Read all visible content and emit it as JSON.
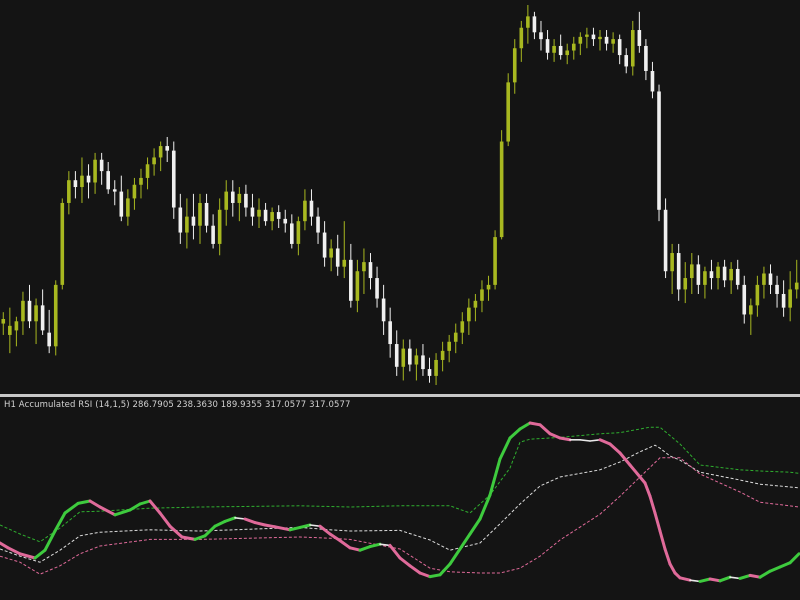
{
  "indicator_label": "H1 Accumulated RSI (14,1,5) 286.7905 238.3630 189.9355 317.0577 317.0577",
  "colors": {
    "background": "#141414",
    "separator": "#c8c8c8",
    "bull_candle": "#a8b820",
    "bear_candle": "#f0f0f0",
    "wick": "#d8d8d8",
    "rsi_up": "#3ecb3e",
    "rsi_flat": "#e8e8e8",
    "rsi_down": "#e06a9a",
    "band_upper": "#2fae2f",
    "band_mid": "#dcdcdc",
    "band_lower": "#e06a9a",
    "label_text": "#d2d2d2"
  },
  "chart_data": [
    {
      "type": "candlestick",
      "title": "",
      "candles": [
        {
          "o": 305,
          "h": 310,
          "l": 300,
          "c": 307
        },
        {
          "o": 300,
          "h": 312,
          "l": 292,
          "c": 304
        },
        {
          "o": 302,
          "h": 308,
          "l": 295,
          "c": 306
        },
        {
          "o": 306,
          "h": 319,
          "l": 300,
          "c": 315
        },
        {
          "o": 315,
          "h": 322,
          "l": 303,
          "c": 306
        },
        {
          "o": 306,
          "h": 316,
          "l": 296,
          "c": 313
        },
        {
          "o": 313,
          "h": 320,
          "l": 300,
          "c": 302
        },
        {
          "o": 301,
          "h": 311,
          "l": 292,
          "c": 295
        },
        {
          "o": 295,
          "h": 324,
          "l": 291,
          "c": 322
        },
        {
          "o": 322,
          "h": 360,
          "l": 320,
          "c": 358
        },
        {
          "o": 358,
          "h": 372,
          "l": 353,
          "c": 368
        },
        {
          "o": 368,
          "h": 372,
          "l": 360,
          "c": 365
        },
        {
          "o": 365,
          "h": 378,
          "l": 358,
          "c": 370
        },
        {
          "o": 370,
          "h": 375,
          "l": 360,
          "c": 367
        },
        {
          "o": 367,
          "h": 380,
          "l": 362,
          "c": 377
        },
        {
          "o": 377,
          "h": 380,
          "l": 366,
          "c": 372
        },
        {
          "o": 372,
          "h": 376,
          "l": 362,
          "c": 364
        },
        {
          "o": 364,
          "h": 368,
          "l": 357,
          "c": 363
        },
        {
          "o": 363,
          "h": 370,
          "l": 350,
          "c": 352
        },
        {
          "o": 352,
          "h": 364,
          "l": 348,
          "c": 360
        },
        {
          "o": 360,
          "h": 369,
          "l": 355,
          "c": 366
        },
        {
          "o": 366,
          "h": 373,
          "l": 360,
          "c": 369
        },
        {
          "o": 369,
          "h": 378,
          "l": 364,
          "c": 375
        },
        {
          "o": 375,
          "h": 382,
          "l": 370,
          "c": 378
        },
        {
          "o": 378,
          "h": 385,
          "l": 372,
          "c": 383
        },
        {
          "o": 383,
          "h": 387,
          "l": 376,
          "c": 381
        },
        {
          "o": 381,
          "h": 385,
          "l": 351,
          "c": 356
        },
        {
          "o": 356,
          "h": 362,
          "l": 340,
          "c": 345
        },
        {
          "o": 345,
          "h": 360,
          "l": 338,
          "c": 352
        },
        {
          "o": 352,
          "h": 362,
          "l": 342,
          "c": 348
        },
        {
          "o": 348,
          "h": 362,
          "l": 340,
          "c": 358
        },
        {
          "o": 358,
          "h": 362,
          "l": 345,
          "c": 348
        },
        {
          "o": 348,
          "h": 353,
          "l": 338,
          "c": 340
        },
        {
          "o": 340,
          "h": 360,
          "l": 335,
          "c": 355
        },
        {
          "o": 355,
          "h": 368,
          "l": 348,
          "c": 363
        },
        {
          "o": 363,
          "h": 368,
          "l": 352,
          "c": 358
        },
        {
          "o": 358,
          "h": 365,
          "l": 350,
          "c": 362
        },
        {
          "o": 362,
          "h": 366,
          "l": 352,
          "c": 356
        },
        {
          "o": 356,
          "h": 362,
          "l": 348,
          "c": 352
        },
        {
          "o": 352,
          "h": 360,
          "l": 347,
          "c": 355
        },
        {
          "o": 355,
          "h": 358,
          "l": 348,
          "c": 350
        },
        {
          "o": 350,
          "h": 356,
          "l": 346,
          "c": 354
        },
        {
          "o": 354,
          "h": 357,
          "l": 347,
          "c": 351
        },
        {
          "o": 351,
          "h": 355,
          "l": 345,
          "c": 349
        },
        {
          "o": 349,
          "h": 353,
          "l": 338,
          "c": 340
        },
        {
          "o": 340,
          "h": 352,
          "l": 335,
          "c": 350
        },
        {
          "o": 350,
          "h": 364,
          "l": 346,
          "c": 359
        },
        {
          "o": 359,
          "h": 364,
          "l": 348,
          "c": 352
        },
        {
          "o": 352,
          "h": 356,
          "l": 340,
          "c": 345
        },
        {
          "o": 345,
          "h": 350,
          "l": 330,
          "c": 334
        },
        {
          "o": 334,
          "h": 342,
          "l": 328,
          "c": 338
        },
        {
          "o": 338,
          "h": 344,
          "l": 326,
          "c": 330
        },
        {
          "o": 330,
          "h": 350,
          "l": 325,
          "c": 333
        },
        {
          "o": 333,
          "h": 340,
          "l": 312,
          "c": 315
        },
        {
          "o": 315,
          "h": 333,
          "l": 310,
          "c": 328
        },
        {
          "o": 328,
          "h": 338,
          "l": 318,
          "c": 332
        },
        {
          "o": 332,
          "h": 336,
          "l": 320,
          "c": 325
        },
        {
          "o": 325,
          "h": 330,
          "l": 312,
          "c": 316
        },
        {
          "o": 316,
          "h": 322,
          "l": 300,
          "c": 306
        },
        {
          "o": 306,
          "h": 312,
          "l": 290,
          "c": 296
        },
        {
          "o": 296,
          "h": 302,
          "l": 282,
          "c": 286
        },
        {
          "o": 286,
          "h": 298,
          "l": 280,
          "c": 294
        },
        {
          "o": 294,
          "h": 298,
          "l": 284,
          "c": 287
        },
        {
          "o": 287,
          "h": 294,
          "l": 280,
          "c": 291
        },
        {
          "o": 291,
          "h": 296,
          "l": 282,
          "c": 285
        },
        {
          "o": 285,
          "h": 290,
          "l": 279,
          "c": 282
        },
        {
          "o": 282,
          "h": 292,
          "l": 278,
          "c": 289
        },
        {
          "o": 289,
          "h": 297,
          "l": 284,
          "c": 293
        },
        {
          "o": 293,
          "h": 300,
          "l": 288,
          "c": 297
        },
        {
          "o": 297,
          "h": 305,
          "l": 292,
          "c": 301
        },
        {
          "o": 301,
          "h": 310,
          "l": 296,
          "c": 306
        },
        {
          "o": 306,
          "h": 316,
          "l": 300,
          "c": 312
        },
        {
          "o": 312,
          "h": 318,
          "l": 306,
          "c": 315
        },
        {
          "o": 315,
          "h": 324,
          "l": 310,
          "c": 320
        },
        {
          "o": 320,
          "h": 326,
          "l": 315,
          "c": 322
        },
        {
          "o": 322,
          "h": 346,
          "l": 320,
          "c": 343
        },
        {
          "o": 343,
          "h": 390,
          "l": 342,
          "c": 385
        },
        {
          "o": 385,
          "h": 415,
          "l": 383,
          "c": 411
        },
        {
          "o": 411,
          "h": 430,
          "l": 406,
          "c": 426
        },
        {
          "o": 426,
          "h": 438,
          "l": 420,
          "c": 435
        },
        {
          "o": 435,
          "h": 445,
          "l": 428,
          "c": 440
        },
        {
          "o": 440,
          "h": 442,
          "l": 430,
          "c": 433
        },
        {
          "o": 433,
          "h": 438,
          "l": 425,
          "c": 430
        },
        {
          "o": 430,
          "h": 434,
          "l": 421,
          "c": 424
        },
        {
          "o": 424,
          "h": 430,
          "l": 420,
          "c": 427
        },
        {
          "o": 427,
          "h": 432,
          "l": 421,
          "c": 423
        },
        {
          "o": 423,
          "h": 428,
          "l": 419,
          "c": 425
        },
        {
          "o": 425,
          "h": 431,
          "l": 421,
          "c": 428
        },
        {
          "o": 428,
          "h": 433,
          "l": 423,
          "c": 431
        },
        {
          "o": 431,
          "h": 435,
          "l": 426,
          "c": 432
        },
        {
          "o": 432,
          "h": 435,
          "l": 427,
          "c": 430
        },
        {
          "o": 430,
          "h": 434,
          "l": 425,
          "c": 431
        },
        {
          "o": 431,
          "h": 434,
          "l": 425,
          "c": 428
        },
        {
          "o": 428,
          "h": 433,
          "l": 424,
          "c": 430
        },
        {
          "o": 430,
          "h": 432,
          "l": 419,
          "c": 423
        },
        {
          "o": 423,
          "h": 426,
          "l": 415,
          "c": 418
        },
        {
          "o": 418,
          "h": 438,
          "l": 414,
          "c": 434
        },
        {
          "o": 434,
          "h": 442,
          "l": 424,
          "c": 427
        },
        {
          "o": 427,
          "h": 430,
          "l": 412,
          "c": 416
        },
        {
          "o": 416,
          "h": 420,
          "l": 404,
          "c": 407
        },
        {
          "o": 407,
          "h": 410,
          "l": 350,
          "c": 355
        },
        {
          "o": 355,
          "h": 360,
          "l": 325,
          "c": 328
        },
        {
          "o": 328,
          "h": 340,
          "l": 318,
          "c": 336
        },
        {
          "o": 336,
          "h": 340,
          "l": 315,
          "c": 320
        },
        {
          "o": 320,
          "h": 332,
          "l": 314,
          "c": 325
        },
        {
          "o": 325,
          "h": 336,
          "l": 318,
          "c": 331
        },
        {
          "o": 331,
          "h": 335,
          "l": 318,
          "c": 322
        },
        {
          "o": 322,
          "h": 330,
          "l": 316,
          "c": 328
        },
        {
          "o": 328,
          "h": 333,
          "l": 320,
          "c": 325
        },
        {
          "o": 325,
          "h": 332,
          "l": 320,
          "c": 330
        },
        {
          "o": 330,
          "h": 333,
          "l": 321,
          "c": 324
        },
        {
          "o": 324,
          "h": 332,
          "l": 318,
          "c": 329
        },
        {
          "o": 329,
          "h": 333,
          "l": 320,
          "c": 322
        },
        {
          "o": 322,
          "h": 326,
          "l": 305,
          "c": 309
        },
        {
          "o": 309,
          "h": 316,
          "l": 300,
          "c": 313
        },
        {
          "o": 313,
          "h": 326,
          "l": 308,
          "c": 322
        },
        {
          "o": 322,
          "h": 330,
          "l": 316,
          "c": 327
        },
        {
          "o": 327,
          "h": 331,
          "l": 318,
          "c": 322
        },
        {
          "o": 322,
          "h": 326,
          "l": 312,
          "c": 318
        },
        {
          "o": 318,
          "h": 324,
          "l": 308,
          "c": 312
        },
        {
          "o": 312,
          "h": 328,
          "l": 306,
          "c": 320
        },
        {
          "o": 320,
          "h": 333,
          "l": 316,
          "c": 323
        }
      ]
    },
    {
      "type": "line",
      "title": "H1 Accumulated RSI (14,1,5)",
      "ylim": [
        0,
        320
      ],
      "series": [
        {
          "role": "rsi",
          "x": [
            0,
            8,
            20,
            35,
            45,
            55,
            65,
            78,
            90,
            100,
            115,
            130,
            140,
            150,
            160,
            170,
            182,
            195,
            205,
            215,
            225,
            235,
            245,
            255,
            265,
            275,
            290,
            300,
            310,
            320,
            330,
            340,
            350,
            360,
            370,
            380,
            390,
            400,
            410,
            420,
            430,
            440,
            450,
            460,
            470,
            480,
            490,
            500,
            510,
            520,
            530,
            540,
            550,
            560,
            570,
            580,
            590,
            600,
            610,
            620,
            630,
            640,
            645,
            650,
            655,
            660,
            665,
            670,
            675,
            680,
            690,
            700,
            710,
            720,
            730,
            740,
            750,
            760,
            770,
            780,
            790,
            799
          ],
          "y": [
            90,
            82,
            72,
            65,
            78,
            110,
            140,
            156,
            160,
            150,
            137,
            145,
            155,
            160,
            140,
            118,
            100,
            96,
            102,
            118,
            126,
            132,
            130,
            124,
            120,
            117,
            112,
            116,
            120,
            118,
            105,
            94,
            82,
            78,
            84,
            88,
            86,
            65,
            52,
            40,
            34,
            37,
            55,
            80,
            105,
            130,
            170,
            230,
            265,
            280,
            290,
            287,
            272,
            265,
            262,
            262,
            260,
            262,
            255,
            240,
            220,
            200,
            190,
            168,
            140,
            110,
            80,
            55,
            40,
            32,
            28,
            26,
            30,
            27,
            33,
            31,
            36,
            33,
            43,
            50,
            57,
            72
          ]
        },
        {
          "role": "band_upper",
          "x": [
            0,
            20,
            40,
            60,
            80,
            100,
            150,
            200,
            250,
            300,
            350,
            400,
            450,
            470,
            490,
            510,
            520,
            530,
            560,
            600,
            620,
            650,
            660,
            680,
            700,
            740,
            760,
            790,
            799
          ],
          "y": [
            120,
            105,
            92,
            115,
            142,
            143,
            148,
            150,
            151,
            152,
            150,
            152,
            152,
            140,
            170,
            215,
            258,
            263,
            266,
            272,
            274,
            283,
            283,
            255,
            220,
            212,
            210,
            208,
            206
          ]
        },
        {
          "role": "band_mid",
          "x": [
            0,
            20,
            40,
            60,
            80,
            100,
            150,
            200,
            250,
            300,
            330,
            350,
            400,
            430,
            450,
            480,
            500,
            520,
            540,
            560,
            600,
            620,
            640,
            655,
            660,
            670,
            680,
            700,
            740,
            760,
            799
          ],
          "y": [
            80,
            68,
            58,
            78,
            102,
            108,
            112,
            110,
            113,
            116,
            112,
            110,
            111,
            95,
            78,
            90,
            122,
            155,
            185,
            200,
            212,
            225,
            242,
            253,
            248,
            235,
            228,
            208,
            195,
            188,
            182
          ]
        },
        {
          "role": "band_lower",
          "x": [
            0,
            20,
            40,
            60,
            80,
            100,
            150,
            200,
            250,
            300,
            330,
            350,
            400,
            430,
            450,
            480,
            500,
            520,
            540,
            560,
            600,
            620,
            640,
            660,
            680,
            700,
            740,
            760,
            799
          ],
          "y": [
            68,
            58,
            38,
            52,
            72,
            85,
            96,
            96,
            98,
            100,
            98,
            96,
            80,
            48,
            42,
            40,
            40,
            48,
            68,
            95,
            138,
            168,
            200,
            232,
            232,
            205,
            175,
            158,
            150
          ]
        }
      ]
    }
  ]
}
